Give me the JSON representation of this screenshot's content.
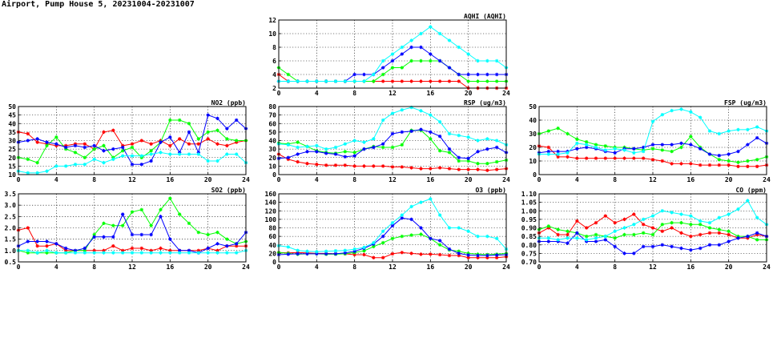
{
  "page": {
    "title": "Airport, Pump House 5, 20231004-20231007"
  },
  "series_colors": [
    "#ff0000",
    "#00ff00",
    "#0000ff",
    "#00ffff"
  ],
  "chart_data": [
    {
      "id": "aqhi",
      "type": "line",
      "title": "AQHI (AQHI)",
      "x_ticks": [
        0,
        4,
        8,
        12,
        16,
        20,
        24
      ],
      "xlim": [
        0,
        24
      ],
      "ylim": [
        2,
        12
      ],
      "y_ticks": [
        2,
        4,
        6,
        8,
        10,
        12
      ],
      "grid": true,
      "series": [
        {
          "color": "#ff0000",
          "values": [
            4,
            3,
            3,
            3,
            3,
            3,
            3,
            3,
            3,
            3,
            3,
            3,
            3,
            3,
            3,
            3,
            3,
            3,
            3,
            3,
            2,
            2,
            2,
            2,
            2
          ]
        },
        {
          "color": "#00ff00",
          "values": [
            5,
            4,
            3,
            3,
            3,
            3,
            3,
            3,
            3,
            3,
            3,
            4,
            5,
            5,
            6,
            6,
            6,
            6,
            5,
            4,
            3,
            3,
            3,
            3,
            3
          ]
        },
        {
          "color": "#0000ff",
          "values": [
            3,
            3,
            3,
            3,
            3,
            3,
            3,
            3,
            4,
            4,
            4,
            5,
            6,
            7,
            8,
            8,
            7,
            6,
            5,
            4,
            4,
            4,
            4,
            4,
            4
          ]
        },
        {
          "color": "#00ffff",
          "values": [
            3,
            3,
            3,
            3,
            3,
            3,
            3,
            3,
            3,
            3,
            4,
            6,
            7,
            8,
            9,
            10,
            11,
            10,
            9,
            8,
            7,
            6,
            6,
            6,
            5
          ]
        }
      ]
    },
    {
      "id": "no2",
      "type": "line",
      "title": "NO2 (ppb)",
      "x_ticks": [
        0,
        4,
        8,
        12,
        16,
        20,
        24
      ],
      "xlim": [
        0,
        24
      ],
      "ylim": [
        10,
        50
      ],
      "y_ticks": [
        10,
        15,
        20,
        25,
        30,
        35,
        40,
        45,
        50
      ],
      "grid": true,
      "series": [
        {
          "color": "#ff0000",
          "values": [
            35,
            34,
            29,
            28,
            27,
            27,
            28,
            28,
            25,
            35,
            36,
            27,
            28,
            30,
            28,
            30,
            27,
            31,
            28,
            28,
            31,
            28,
            27,
            29,
            30
          ]
        },
        {
          "color": "#00ff00",
          "values": [
            20,
            19,
            17,
            27,
            32,
            25,
            23,
            20,
            25,
            27,
            20,
            24,
            26,
            20,
            24,
            29,
            42,
            42,
            40,
            31,
            35,
            36,
            31,
            30,
            30
          ]
        },
        {
          "color": "#0000ff",
          "values": [
            29,
            30,
            31,
            29,
            28,
            26,
            27,
            26,
            27,
            24,
            25,
            26,
            16,
            16,
            18,
            29,
            32,
            23,
            35,
            23,
            45,
            43,
            37,
            42,
            37
          ]
        },
        {
          "color": "#00ffff",
          "values": [
            12,
            11,
            11,
            12,
            15,
            15,
            16,
            16,
            19,
            17,
            19,
            21,
            21,
            21,
            22,
            23,
            22,
            22,
            22,
            22,
            18,
            18,
            22,
            22,
            17
          ]
        }
      ]
    },
    {
      "id": "rsp",
      "type": "line",
      "title": "RSP (ug/m3)",
      "x_ticks": [
        0,
        4,
        8,
        12,
        16,
        20,
        24
      ],
      "xlim": [
        0,
        24
      ],
      "ylim": [
        0,
        80
      ],
      "y_ticks": [
        0,
        10,
        20,
        30,
        40,
        50,
        60,
        70,
        80
      ],
      "grid": true,
      "series": [
        {
          "color": "#ff0000",
          "values": [
            24,
            18,
            15,
            13,
            12,
            11,
            11,
            11,
            10,
            10,
            10,
            10,
            9,
            9,
            8,
            7,
            7,
            8,
            7,
            6,
            6,
            6,
            5,
            6,
            7
          ]
        },
        {
          "color": "#00ff00",
          "values": [
            37,
            36,
            38,
            33,
            28,
            26,
            25,
            27,
            26,
            30,
            33,
            32,
            32,
            35,
            52,
            52,
            42,
            28,
            26,
            16,
            16,
            13,
            13,
            15,
            17
          ]
        },
        {
          "color": "#0000ff",
          "values": [
            19,
            20,
            24,
            27,
            27,
            25,
            24,
            21,
            22,
            30,
            32,
            36,
            48,
            50,
            51,
            53,
            50,
            45,
            30,
            20,
            19,
            27,
            30,
            32,
            26
          ]
        },
        {
          "color": "#00ffff",
          "values": [
            36,
            35,
            32,
            33,
            34,
            30,
            32,
            36,
            40,
            38,
            42,
            64,
            72,
            76,
            79,
            75,
            70,
            62,
            48,
            46,
            44,
            40,
            42,
            40,
            35
          ]
        }
      ]
    },
    {
      "id": "fsp",
      "type": "line",
      "title": "FSP (ug/m3)",
      "x_ticks": [
        0,
        4,
        8,
        12,
        16,
        20,
        24
      ],
      "xlim": [
        0,
        24
      ],
      "ylim": [
        0,
        50
      ],
      "y_ticks": [
        0,
        10,
        20,
        30,
        40,
        50
      ],
      "grid": true,
      "series": [
        {
          "color": "#ff0000",
          "values": [
            21,
            20,
            13,
            13,
            12,
            12,
            12,
            12,
            12,
            12,
            12,
            12,
            11,
            10,
            8,
            8,
            8,
            7,
            7,
            7,
            7,
            6,
            6,
            6,
            7
          ]
        },
        {
          "color": "#00ff00",
          "values": [
            30,
            32,
            34,
            30,
            26,
            24,
            22,
            21,
            20,
            20,
            19,
            18,
            19,
            18,
            17,
            20,
            28,
            20,
            15,
            11,
            10,
            9,
            10,
            11,
            13
          ]
        },
        {
          "color": "#0000ff",
          "values": [
            16,
            17,
            17,
            17,
            19,
            20,
            19,
            17,
            16,
            19,
            19,
            20,
            22,
            22,
            22,
            23,
            22,
            19,
            15,
            14,
            15,
            17,
            22,
            27,
            23
          ]
        },
        {
          "color": "#00ffff",
          "values": [
            15,
            15,
            15,
            16,
            23,
            22,
            20,
            18,
            19,
            18,
            16,
            17,
            39,
            44,
            47,
            48,
            46,
            42,
            32,
            30,
            32,
            33,
            33,
            35,
            32
          ]
        }
      ]
    },
    {
      "id": "so2",
      "type": "line",
      "title": "SO2 (ppb)",
      "x_ticks": [
        0,
        4,
        8,
        12,
        16,
        20,
        24
      ],
      "xlim": [
        0,
        24
      ],
      "ylim": [
        0.5,
        3.5
      ],
      "y_ticks": [
        0.5,
        1.0,
        1.5,
        2.0,
        2.5,
        3.0,
        3.5
      ],
      "grid": true,
      "series": [
        {
          "color": "#ff0000",
          "values": [
            1.9,
            2.0,
            1.2,
            1.2,
            1.3,
            1.0,
            1.0,
            1.0,
            1.0,
            1.0,
            1.2,
            1.0,
            1.1,
            1.1,
            1.0,
            1.1,
            1.0,
            1.0,
            1.0,
            1.0,
            1.1,
            1.0,
            1.2,
            1.2,
            1.2
          ]
        },
        {
          "color": "#00ff00",
          "values": [
            1.0,
            0.9,
            0.9,
            0.9,
            0.9,
            0.9,
            1.0,
            1.0,
            1.7,
            2.2,
            2.1,
            2.1,
            2.7,
            2.8,
            2.1,
            2.8,
            3.3,
            2.6,
            2.2,
            1.8,
            1.7,
            1.8,
            1.5,
            1.3,
            1.4
          ]
        },
        {
          "color": "#0000ff",
          "values": [
            1.2,
            1.4,
            1.4,
            1.4,
            1.3,
            1.1,
            1.0,
            1.1,
            1.6,
            1.6,
            1.6,
            2.6,
            1.7,
            1.7,
            1.7,
            2.5,
            1.5,
            1.0,
            1.0,
            0.9,
            1.1,
            1.3,
            1.2,
            1.3,
            1.8
          ]
        },
        {
          "color": "#00ffff",
          "values": [
            1.0,
            1.0,
            0.9,
            1.0,
            0.9,
            0.9,
            0.9,
            0.9,
            0.9,
            0.9,
            0.9,
            0.9,
            0.9,
            0.9,
            0.9,
            0.9,
            0.9,
            0.9,
            0.9,
            0.9,
            0.9,
            0.9,
            0.9,
            0.9,
            1.0
          ]
        }
      ]
    },
    {
      "id": "o3",
      "type": "line",
      "title": "O3 (ppb)",
      "x_ticks": [
        0,
        4,
        8,
        12,
        16,
        20,
        24
      ],
      "xlim": [
        0,
        24
      ],
      "ylim": [
        0,
        160
      ],
      "y_ticks": [
        0,
        20,
        40,
        60,
        80,
        100,
        120,
        140,
        160
      ],
      "grid": true,
      "series": [
        {
          "color": "#ff0000",
          "values": [
            22,
            21,
            22,
            21,
            20,
            20,
            19,
            19,
            17,
            17,
            10,
            10,
            19,
            22,
            20,
            18,
            18,
            17,
            15,
            15,
            10,
            10,
            10,
            10,
            12
          ]
        },
        {
          "color": "#00ff00",
          "values": [
            22,
            20,
            18,
            19,
            19,
            18,
            18,
            19,
            22,
            26,
            36,
            45,
            55,
            60,
            63,
            65,
            55,
            40,
            28,
            25,
            20,
            18,
            17,
            18,
            20
          ]
        },
        {
          "color": "#0000ff",
          "values": [
            17,
            18,
            19,
            19,
            19,
            19,
            19,
            21,
            25,
            32,
            42,
            60,
            85,
            103,
            100,
            80,
            55,
            50,
            30,
            20,
            16,
            15,
            15,
            16,
            17
          ]
        },
        {
          "color": "#00ffff",
          "values": [
            38,
            35,
            27,
            25,
            24,
            25,
            26,
            27,
            30,
            34,
            45,
            72,
            92,
            110,
            130,
            140,
            148,
            110,
            80,
            80,
            72,
            60,
            60,
            55,
            30
          ]
        }
      ]
    },
    {
      "id": "co",
      "type": "line",
      "title": "CO (ppm)",
      "x_ticks": [
        0,
        4,
        8,
        12,
        16,
        20,
        24
      ],
      "xlim": [
        0,
        24
      ],
      "ylim": [
        0.7,
        1.1
      ],
      "y_ticks": [
        0.7,
        0.75,
        0.8,
        0.85,
        0.9,
        0.95,
        1.0,
        1.05,
        1.1
      ],
      "grid": true,
      "series": [
        {
          "color": "#ff0000",
          "values": [
            0.87,
            0.9,
            0.86,
            0.86,
            0.94,
            0.9,
            0.93,
            0.97,
            0.93,
            0.95,
            0.98,
            0.92,
            0.9,
            0.88,
            0.9,
            0.87,
            0.85,
            0.86,
            0.87,
            0.87,
            0.86,
            0.84,
            0.84,
            0.86,
            0.85
          ]
        },
        {
          "color": "#00ff00",
          "values": [
            0.89,
            0.91,
            0.89,
            0.88,
            0.87,
            0.85,
            0.86,
            0.85,
            0.84,
            0.86,
            0.86,
            0.87,
            0.86,
            0.92,
            0.93,
            0.93,
            0.92,
            0.92,
            0.9,
            0.89,
            0.88,
            0.85,
            0.85,
            0.83,
            0.83
          ]
        },
        {
          "color": "#0000ff",
          "values": [
            0.82,
            0.82,
            0.82,
            0.81,
            0.87,
            0.82,
            0.82,
            0.83,
            0.79,
            0.75,
            0.75,
            0.79,
            0.79,
            0.8,
            0.79,
            0.78,
            0.77,
            0.78,
            0.8,
            0.8,
            0.82,
            0.84,
            0.85,
            0.87,
            0.85
          ]
        },
        {
          "color": "#00ffff",
          "values": [
            0.84,
            0.84,
            0.83,
            0.84,
            0.84,
            0.83,
            0.84,
            0.85,
            0.88,
            0.9,
            0.92,
            0.95,
            0.97,
            1.0,
            0.99,
            0.98,
            0.97,
            0.94,
            0.93,
            0.96,
            0.98,
            1.01,
            1.06,
            0.96,
            0.92
          ]
        }
      ]
    }
  ]
}
